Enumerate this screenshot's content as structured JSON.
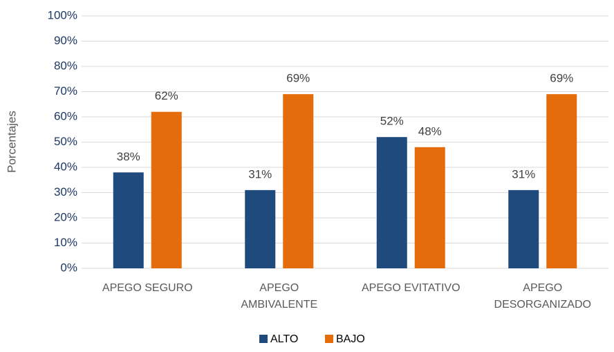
{
  "chart_data": {
    "type": "bar",
    "y_label": "Porcentajes",
    "categories": [
      "APEGO SEGURO",
      "APEGO AMBIVALENTE",
      "APEGO EVITATIVO",
      "APEGO DESORGANIZADO"
    ],
    "series": [
      {
        "name": "ALTO",
        "color": "#1f4a7d",
        "values": [
          38,
          31,
          52,
          31
        ],
        "value_labels": [
          "38%",
          "31%",
          "52%",
          "31%"
        ]
      },
      {
        "name": "BAJO",
        "color": "#e46c0a",
        "values": [
          62,
          69,
          48,
          69
        ],
        "value_labels": [
          "62%",
          "69%",
          "48%",
          "69%"
        ]
      }
    ],
    "ylim": [
      0,
      100
    ],
    "yticks": [
      {
        "value": 0,
        "label": "0%"
      },
      {
        "value": 10,
        "label": "10%"
      },
      {
        "value": 20,
        "label": "20%"
      },
      {
        "value": 30,
        "label": "30%"
      },
      {
        "value": 40,
        "label": "40%"
      },
      {
        "value": 50,
        "label": "50%"
      },
      {
        "value": 60,
        "label": "60%"
      },
      {
        "value": 70,
        "label": "70%"
      },
      {
        "value": 80,
        "label": "80%"
      },
      {
        "value": 90,
        "label": "90%"
      },
      {
        "value": 100,
        "label": "100%"
      }
    ],
    "grid": true,
    "legend": "bottom"
  }
}
